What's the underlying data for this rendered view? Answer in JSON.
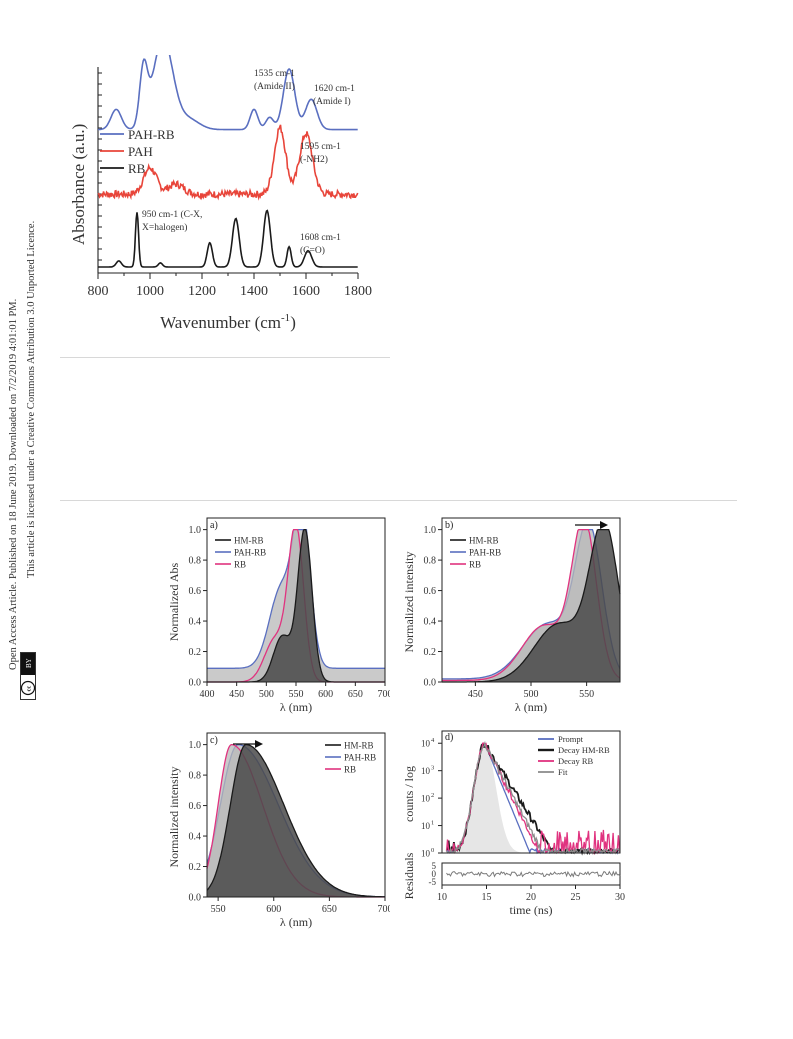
{
  "sidebar": {
    "line1": "Open Access Article. Published on 18 June 2019. Downloaded on 7/2/2019 4:01:01 PM.",
    "line2": "This article is licensed under a Creative Commons Attribution 3.0 Unported Licence.",
    "cc_label": "cc",
    "by_label": "BY"
  },
  "colors": {
    "blue": "#5a6fc0",
    "red": "#e8453a",
    "black": "#1a1a1a",
    "pink": "#e0337f",
    "grey": "#8c8c8c",
    "darkfill": "#4a4a4a",
    "lightfill": "#b8b8b8"
  },
  "chart_data": [
    {
      "id": "ftir",
      "type": "line",
      "xlabel": "Wavenumber (cm",
      "xlabel_sup": "-1",
      "xlabel_end": ")",
      "ylabel": "Absorbance (a.u.)",
      "xlim": [
        800,
        1800
      ],
      "xticks": [
        "800",
        "1000",
        "1200",
        "1400",
        "1600",
        "1800"
      ],
      "legend": [
        "PAH-RB",
        "PAH",
        "RB"
      ],
      "series": [
        {
          "name": "PAH-RB",
          "color": "#5a6fc0",
          "offset": 0.7,
          "peaks": [
            [
              870,
              0.1,
              20
            ],
            [
              975,
              0.28,
              15
            ],
            [
              1050,
              0.45,
              38
            ],
            [
              1150,
              0.05,
              40
            ],
            [
              1400,
              0.1,
              15
            ],
            [
              1460,
              0.06,
              15
            ],
            [
              1535,
              0.3,
              22
            ],
            [
              1620,
              0.15,
              22
            ]
          ]
        },
        {
          "name": "PAH",
          "color": "#e8453a",
          "offset": 0.38,
          "peaks": [
            [
              1000,
              0.13,
              25
            ],
            [
              1100,
              0.05,
              30
            ],
            [
              1500,
              0.33,
              22
            ],
            [
              1600,
              0.3,
              25
            ]
          ],
          "noise": 0.018
        },
        {
          "name": "RB",
          "color": "#1a1a1a",
          "offset": 0.02,
          "peaks": [
            [
              880,
              0.03,
              10
            ],
            [
              950,
              0.27,
              6
            ],
            [
              1040,
              0.02,
              8
            ],
            [
              1230,
              0.12,
              10
            ],
            [
              1330,
              0.24,
              13
            ],
            [
              1450,
              0.28,
              13
            ],
            [
              1535,
              0.1,
              8
            ],
            [
              1608,
              0.08,
              14
            ]
          ]
        }
      ],
      "annotations": [
        {
          "lines": [
            "1535 cm-1",
            "(Amide II)"
          ]
        },
        {
          "lines": [
            "1620 cm-1",
            "(Amide I)"
          ]
        },
        {
          "lines": [
            "1595 cm-1",
            "(-NH2)"
          ]
        },
        {
          "lines": [
            "950 cm-1 (C-X,",
            "X=halogen)"
          ]
        },
        {
          "lines": [
            "1608 cm-1",
            "(C=O)"
          ]
        }
      ]
    },
    {
      "id": "panel-a",
      "type": "area",
      "label": "a)",
      "xlabel": "λ (nm)",
      "ylabel": "Normalized Abs",
      "xlim": [
        400,
        700
      ],
      "ylim": [
        0,
        1.05
      ],
      "xticks": [
        "400",
        "450",
        "500",
        "550",
        "600",
        "650",
        "700"
      ],
      "yticks": [
        "0.0",
        "0.2",
        "0.4",
        "0.6",
        "0.8",
        "1.0"
      ],
      "legend": [
        "HM-RB",
        "PAH-RB",
        "RB"
      ],
      "series": [
        {
          "name": "PAH-RB",
          "color": "#5a6fc0",
          "fill": "#b8b8b8",
          "peaks": [
            [
              560,
              1.0,
              14
            ],
            [
              525,
              0.52,
              20
            ]
          ],
          "baseline": 0.09
        },
        {
          "name": "RB",
          "color": "#e0337f",
          "fill": "#b8b8b8",
          "peaks": [
            [
              550,
              1.0,
              13
            ],
            [
              515,
              0.28,
              18
            ]
          ],
          "baseline": 0.0
        },
        {
          "name": "HM-RB",
          "color": "#1a1a1a",
          "fill": "#4a4a4a",
          "peaks": [
            [
              565,
              1.0,
              12
            ],
            [
              527,
              0.3,
              15
            ]
          ],
          "baseline": 0.0
        }
      ]
    },
    {
      "id": "panel-b",
      "type": "area",
      "label": "b)",
      "xlabel": "λ (nm)",
      "ylabel": "Normalized intensity",
      "xlim": [
        420,
        580
      ],
      "ylim": [
        0,
        1.05
      ],
      "xticks": [
        "450",
        "500",
        "550"
      ],
      "yticks": [
        "0.0",
        "0.2",
        "0.4",
        "0.6",
        "0.8",
        "1.0"
      ],
      "legend": [
        "HM-RB",
        "PAH-RB",
        "RB"
      ],
      "series": [
        {
          "name": "PAH-RB",
          "color": "#5a6fc0",
          "fill": "#b8b8b8",
          "peaks": [
            [
              552,
              0.95,
              12
            ],
            [
              515,
              0.36,
              22
            ]
          ],
          "baseline": 0.02
        },
        {
          "name": "RB",
          "color": "#e0337f",
          "fill": "#b8b8b8",
          "peaks": [
            [
              548,
              1.0,
              11
            ],
            [
              512,
              0.36,
              20
            ]
          ],
          "baseline": 0.01
        },
        {
          "name": "HM-RB",
          "color": "#1a1a1a",
          "fill": "#4a4a4a",
          "peaks": [
            [
              566,
              1.0,
              13
            ],
            [
              525,
              0.38,
              22
            ]
          ],
          "baseline": 0.0
        }
      ]
    },
    {
      "id": "panel-c",
      "type": "area",
      "label": "c)",
      "xlabel": "λ (nm)",
      "ylabel": "Normalized intensity",
      "xlim": [
        540,
        700
      ],
      "ylim": [
        0,
        1.05
      ],
      "xticks": [
        "550",
        "600",
        "650",
        "700"
      ],
      "yticks": [
        "0.0",
        "0.2",
        "0.4",
        "0.6",
        "0.8",
        "1.0"
      ],
      "legend": [
        "HM-RB",
        "PAH-RB",
        "RB"
      ],
      "series": [
        {
          "name": "PAH-RB",
          "color": "#5a6fc0",
          "fill": "#b8b8b8",
          "peak": 568,
          "w1": 16,
          "w2": 36
        },
        {
          "name": "RB",
          "color": "#e0337f",
          "fill": "#b8b8b8",
          "peak": 562,
          "w1": 12,
          "w2": 28
        },
        {
          "name": "HM-RB",
          "color": "#1a1a1a",
          "fill": "#4a4a4a",
          "peak": 575,
          "w1": 14,
          "w2": 34
        }
      ]
    },
    {
      "id": "panel-d",
      "type": "line",
      "label": "d)",
      "xlabel": "time (ns)",
      "ylabel": "counts / log",
      "ylabel2": "Residuals",
      "xlim": [
        10,
        30
      ],
      "ylim_log": [
        0,
        4.3
      ],
      "xticks": [
        "10",
        "15",
        "20",
        "25",
        "30"
      ],
      "yticks": [
        "10",
        "10",
        "10",
        "10",
        "10"
      ],
      "ytick_exp": [
        "0",
        "1",
        "2",
        "3",
        "4"
      ],
      "resid_ticks": [
        "5",
        "0",
        "-5"
      ],
      "legend": [
        "Prompt",
        "Decay HM-RB",
        "Decay RB",
        "Fit"
      ],
      "series": [
        {
          "name": "Prompt",
          "color": "#5a6fc0",
          "tau": 0.7
        },
        {
          "name": "Decay HM-RB",
          "color": "#1a1a1a",
          "tau": 1.05
        },
        {
          "name": "Decay RB",
          "color": "#e0337f",
          "tau": 0.85
        },
        {
          "name": "Fit",
          "color": "#8c8c8c",
          "tau": 0.9
        }
      ]
    }
  ]
}
